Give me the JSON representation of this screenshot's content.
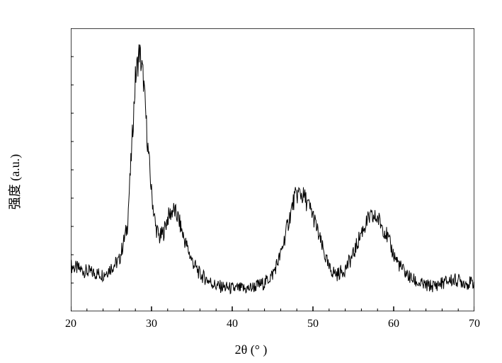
{
  "chart": {
    "type": "line",
    "xlabel": "2θ (° )",
    "ylabel": "强度 (a.u.)",
    "label_fontsize": 18,
    "tick_fontsize": 16,
    "xlim": [
      20,
      70
    ],
    "ylim": [
      0,
      100
    ],
    "xticks": [
      20,
      30,
      40,
      50,
      60,
      70
    ],
    "xtick_labels": [
      "20",
      "30",
      "40",
      "50",
      "60",
      "70"
    ],
    "xminor_step": 2,
    "major_tick_len": 7,
    "minor_tick_len": 4,
    "yticks_minor": [
      10,
      20,
      30,
      40,
      50,
      60,
      70,
      80,
      90
    ],
    "line_color": "#000000",
    "line_width": 1,
    "background_color": "#ffffff",
    "baseline_points": [
      [
        20,
        16
      ],
      [
        22,
        14
      ],
      [
        24,
        13
      ],
      [
        26,
        18
      ],
      [
        27,
        30
      ],
      [
        27.5,
        55
      ],
      [
        28,
        82
      ],
      [
        28.5,
        92
      ],
      [
        29,
        82
      ],
      [
        29.5,
        60
      ],
      [
        30,
        42
      ],
      [
        30.5,
        30
      ],
      [
        31,
        26
      ],
      [
        31.5,
        28
      ],
      [
        32,
        33
      ],
      [
        32.7,
        36
      ],
      [
        33.3,
        33
      ],
      [
        34,
        26
      ],
      [
        35,
        18
      ],
      [
        36,
        13
      ],
      [
        38,
        9
      ],
      [
        40,
        8
      ],
      [
        42,
        8
      ],
      [
        44,
        10
      ],
      [
        45,
        13
      ],
      [
        46,
        20
      ],
      [
        47,
        32
      ],
      [
        47.7,
        40
      ],
      [
        48.3,
        42
      ],
      [
        49,
        40
      ],
      [
        50,
        34
      ],
      [
        51,
        24
      ],
      [
        52,
        15
      ],
      [
        53,
        13
      ],
      [
        54,
        15
      ],
      [
        55,
        20
      ],
      [
        56,
        28
      ],
      [
        57,
        33
      ],
      [
        58,
        33
      ],
      [
        59,
        28
      ],
      [
        60,
        20
      ],
      [
        61,
        15
      ],
      [
        62,
        12
      ],
      [
        63,
        10
      ],
      [
        64,
        9
      ],
      [
        65,
        9
      ],
      [
        66,
        10
      ],
      [
        67,
        11
      ],
      [
        68,
        11
      ],
      [
        69,
        10
      ],
      [
        70,
        10
      ]
    ],
    "noise_amplitude": 4,
    "noise_freq": 800
  }
}
